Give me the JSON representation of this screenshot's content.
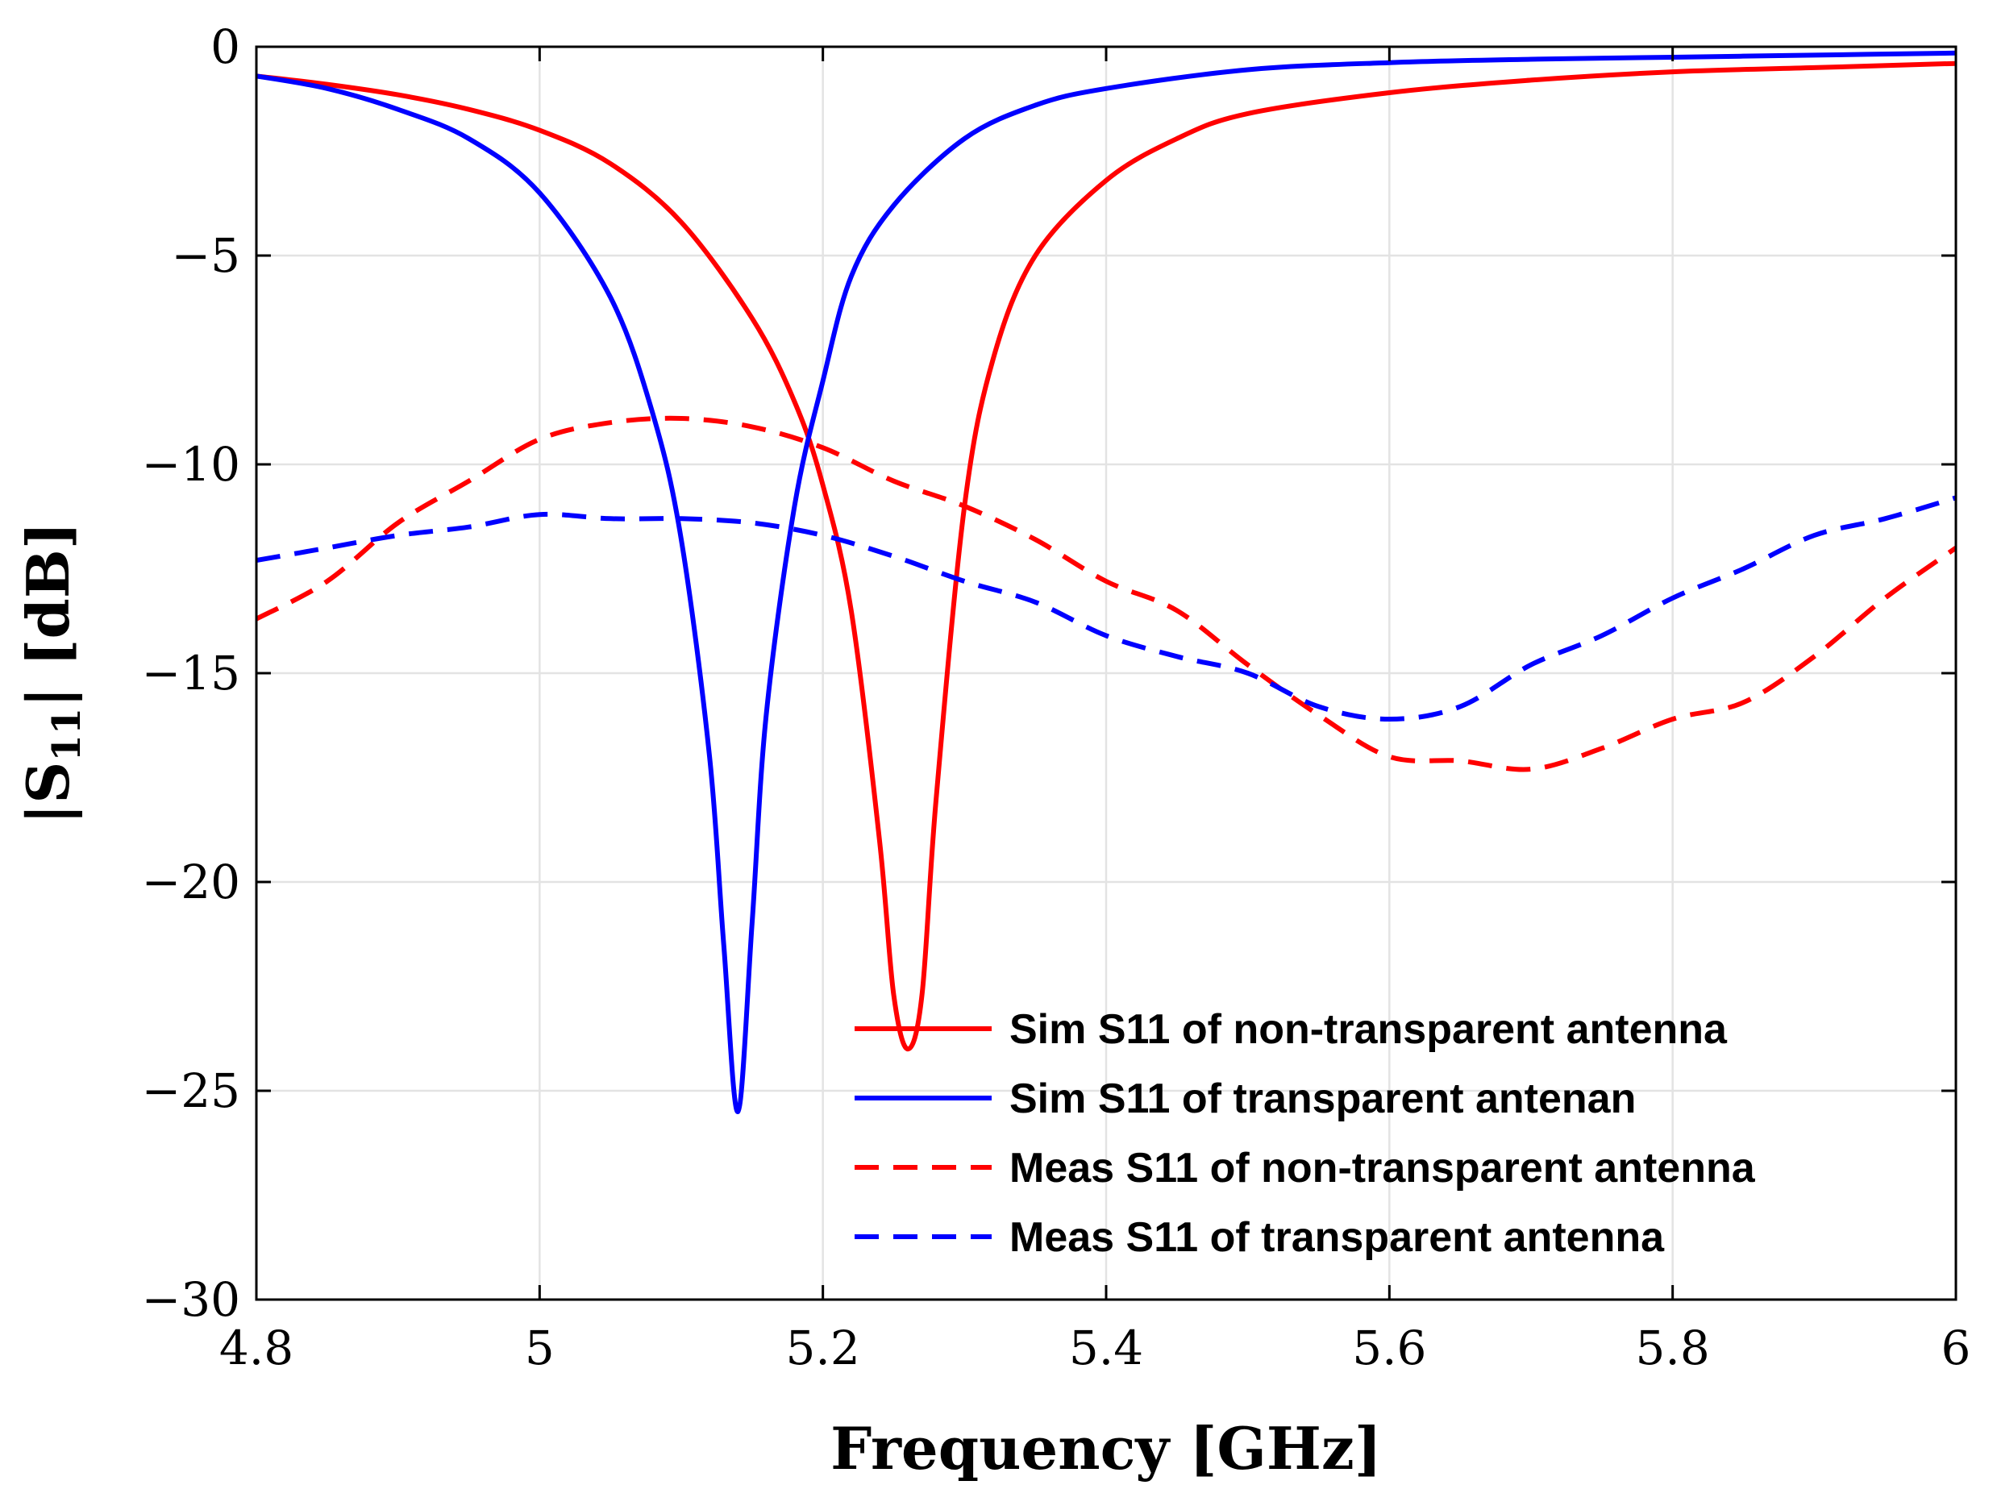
{
  "chart_data": {
    "type": "line",
    "title": "",
    "xlabel": "Frequency [GHz]",
    "ylabel": "|S₁₁| [dB]",
    "ylabel_main": "|S",
    "ylabel_sub": "11",
    "ylabel_rest": "| [dB]",
    "xlim": [
      4.8,
      6.0
    ],
    "ylim": [
      -30,
      0
    ],
    "xticks": [
      4.8,
      5.0,
      5.2,
      5.4,
      5.6,
      5.8,
      6.0
    ],
    "xtick_labels": [
      "4.8",
      "5",
      "5.2",
      "5.4",
      "5.6",
      "5.8",
      "6"
    ],
    "yticks": [
      0,
      -5,
      -10,
      -15,
      -20,
      -25,
      -30
    ],
    "ytick_labels": [
      "0",
      "−5",
      "−10",
      "−15",
      "−20",
      "−25",
      "−30"
    ],
    "grid": true,
    "legend_position": "bottom-right",
    "series": [
      {
        "name": "Sim S11 of non-transparent antenna",
        "color": "#ff0000",
        "dash": "solid",
        "x": [
          4.8,
          4.85,
          4.9,
          4.95,
          5.0,
          5.05,
          5.1,
          5.15,
          5.18,
          5.2,
          5.22,
          5.24,
          5.25,
          5.26,
          5.27,
          5.28,
          5.3,
          5.32,
          5.35,
          5.4,
          5.45,
          5.5,
          5.6,
          5.7,
          5.8,
          5.9,
          6.0
        ],
        "y": [
          -0.7,
          -0.9,
          -1.15,
          -1.5,
          -2.0,
          -2.8,
          -4.2,
          -6.5,
          -8.5,
          -10.5,
          -13.5,
          -19.0,
          -22.7,
          -24.0,
          -22.7,
          -18.0,
          -11.0,
          -7.5,
          -5.0,
          -3.2,
          -2.2,
          -1.6,
          -1.1,
          -0.8,
          -0.6,
          -0.5,
          -0.4
        ]
      },
      {
        "name": "Sim S11 of transparent antenan",
        "color": "#0000ff",
        "dash": "solid",
        "x": [
          4.8,
          4.85,
          4.9,
          4.95,
          5.0,
          5.05,
          5.08,
          5.1,
          5.12,
          5.13,
          5.14,
          5.15,
          5.16,
          5.18,
          5.2,
          5.22,
          5.25,
          5.3,
          5.35,
          5.4,
          5.5,
          5.6,
          5.7,
          5.8,
          5.9,
          6.0
        ],
        "y": [
          -0.7,
          -1.0,
          -1.5,
          -2.2,
          -3.5,
          -6.0,
          -8.8,
          -11.8,
          -17.0,
          -21.5,
          -25.5,
          -21.0,
          -16.0,
          -11.0,
          -8.0,
          -5.5,
          -3.8,
          -2.2,
          -1.4,
          -1.0,
          -0.55,
          -0.38,
          -0.3,
          -0.25,
          -0.2,
          -0.15
        ]
      },
      {
        "name": "Meas S11 of non-transparent antenna",
        "color": "#ff0000",
        "dash": "dashed",
        "x": [
          4.8,
          4.85,
          4.9,
          4.95,
          5.0,
          5.05,
          5.1,
          5.15,
          5.2,
          5.25,
          5.3,
          5.35,
          5.4,
          5.45,
          5.5,
          5.55,
          5.6,
          5.65,
          5.7,
          5.75,
          5.8,
          5.85,
          5.9,
          5.95,
          6.0
        ],
        "y": [
          -13.7,
          -12.8,
          -11.4,
          -10.4,
          -9.4,
          -9.0,
          -8.9,
          -9.1,
          -9.6,
          -10.4,
          -11.0,
          -11.8,
          -12.8,
          -13.5,
          -14.8,
          -16.0,
          -17.0,
          -17.1,
          -17.3,
          -16.8,
          -16.1,
          -15.7,
          -14.6,
          -13.2,
          -12.0
        ]
      },
      {
        "name": "Meas S11 of transparent antenna",
        "color": "#0000ff",
        "dash": "dashed",
        "x": [
          4.8,
          4.85,
          4.9,
          4.95,
          5.0,
          5.05,
          5.1,
          5.15,
          5.2,
          5.25,
          5.3,
          5.35,
          5.4,
          5.45,
          5.5,
          5.55,
          5.6,
          5.65,
          5.7,
          5.75,
          5.8,
          5.85,
          5.9,
          5.95,
          6.0
        ],
        "y": [
          -12.3,
          -12.0,
          -11.7,
          -11.5,
          -11.2,
          -11.3,
          -11.3,
          -11.4,
          -11.7,
          -12.2,
          -12.8,
          -13.3,
          -14.1,
          -14.6,
          -15.0,
          -15.8,
          -16.1,
          -15.8,
          -14.8,
          -14.1,
          -13.2,
          -12.5,
          -11.7,
          -11.3,
          -10.8
        ]
      }
    ]
  }
}
